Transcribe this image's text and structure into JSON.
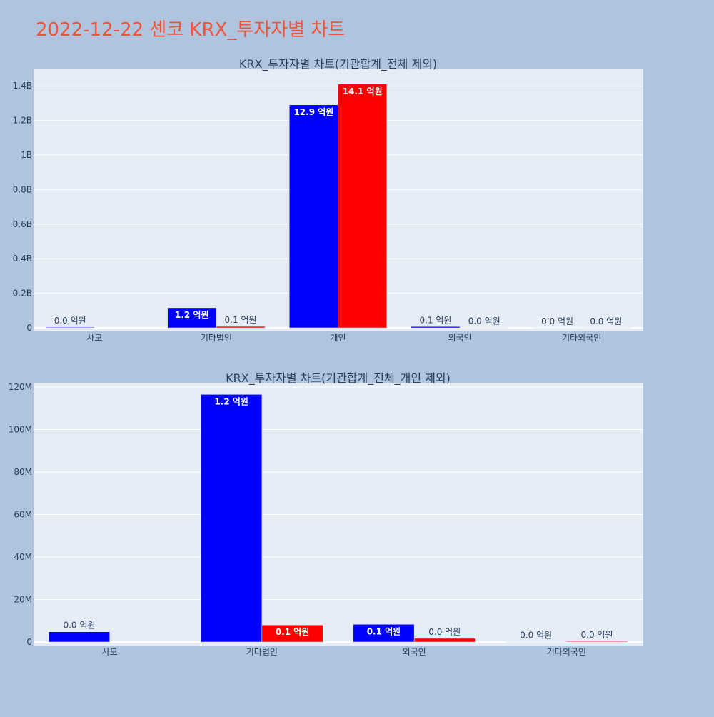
{
  "page": {
    "title": "2022-12-22 센코 KRX_투자자별 차트",
    "title_color": "#ef553b",
    "background": "#b0c4de",
    "plot_background": "#e5ecf6"
  },
  "colors": {
    "series1": "#0000ff",
    "series2": "#ff0000"
  },
  "chart_data": [
    {
      "type": "bar",
      "title": "KRX_투자자별 차트(기관합계_전체 제외)",
      "categories": [
        "사모",
        "기타법인",
        "개인",
        "외국인",
        "기타외국인"
      ],
      "ylim": [
        0,
        1500000000
      ],
      "yticks": [
        0,
        200000000,
        400000000,
        600000000,
        800000000,
        1000000000,
        1200000000,
        1400000000
      ],
      "ytick_labels": [
        "0",
        "0.2B",
        "0.4B",
        "0.6B",
        "0.8B",
        "1B",
        "1.2B",
        "1.4B"
      ],
      "grid": true,
      "series": [
        {
          "color": "#0000ff",
          "values": [
            3500000,
            116000000,
            1290000000,
            7000000,
            0
          ],
          "labels": [
            "0.0 억원",
            "1.2 억원",
            "12.9 억원",
            "0.1 억원",
            "0.0 억원"
          ]
        },
        {
          "color": "#ff0000",
          "values": [
            null,
            8000000,
            1410000000,
            1500000,
            300000
          ],
          "labels": [
            null,
            "0.1 억원",
            "14.1 억원",
            "0.0 억원",
            "0.0 억원"
          ]
        }
      ]
    },
    {
      "type": "bar",
      "title": "KRX_투자자별 차트(기관합계_전체_개인 제외)",
      "categories": [
        "사모",
        "기타법인",
        "외국인",
        "기타외국인"
      ],
      "ylim": [
        0,
        122000000
      ],
      "yticks": [
        0,
        20000000,
        40000000,
        60000000,
        80000000,
        100000000,
        120000000
      ],
      "ytick_labels": [
        "0",
        "20M",
        "40M",
        "60M",
        "80M",
        "100M",
        "120M"
      ],
      "grid": true,
      "series": [
        {
          "color": "#0000ff",
          "values": [
            4800000,
            116500000,
            8300000,
            100000
          ],
          "labels": [
            "0.0 억원",
            "1.2 억원",
            "0.1 억원",
            "0.0 억원"
          ]
        },
        {
          "color": "#ff0000",
          "values": [
            null,
            8000000,
            1700000,
            300000
          ],
          "labels": [
            null,
            "0.1 억원",
            "0.0 억원",
            "0.0 억원"
          ]
        }
      ]
    }
  ]
}
